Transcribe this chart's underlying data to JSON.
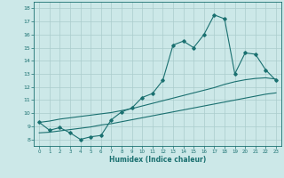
{
  "xlabel": "Humidex (Indice chaleur)",
  "background_color": "#cce8e8",
  "grid_color": "#aacccc",
  "line_color": "#1a7070",
  "xlim": [
    -0.5,
    23.5
  ],
  "ylim": [
    7.5,
    18.5
  ],
  "xticks": [
    0,
    1,
    2,
    3,
    4,
    5,
    6,
    7,
    8,
    9,
    10,
    11,
    12,
    13,
    14,
    15,
    16,
    17,
    18,
    19,
    20,
    21,
    22,
    23
  ],
  "yticks": [
    8,
    9,
    10,
    11,
    12,
    13,
    14,
    15,
    16,
    17,
    18
  ],
  "main_series": [
    9.3,
    8.7,
    8.9,
    8.5,
    8.0,
    8.2,
    8.3,
    9.5,
    10.1,
    10.4,
    11.2,
    11.5,
    12.5,
    15.2,
    15.5,
    15.0,
    16.0,
    17.5,
    17.2,
    13.0,
    14.6,
    14.5,
    13.3,
    12.5
  ],
  "lower_line": [
    8.5,
    8.55,
    8.65,
    8.75,
    8.85,
    8.95,
    9.1,
    9.2,
    9.35,
    9.5,
    9.65,
    9.8,
    9.95,
    10.1,
    10.25,
    10.4,
    10.55,
    10.7,
    10.85,
    11.0,
    11.15,
    11.3,
    11.45,
    11.55
  ],
  "upper_line": [
    9.3,
    9.4,
    9.55,
    9.65,
    9.75,
    9.85,
    9.95,
    10.05,
    10.2,
    10.35,
    10.55,
    10.75,
    10.95,
    11.15,
    11.35,
    11.55,
    11.75,
    11.95,
    12.2,
    12.4,
    12.55,
    12.65,
    12.7,
    12.6
  ]
}
